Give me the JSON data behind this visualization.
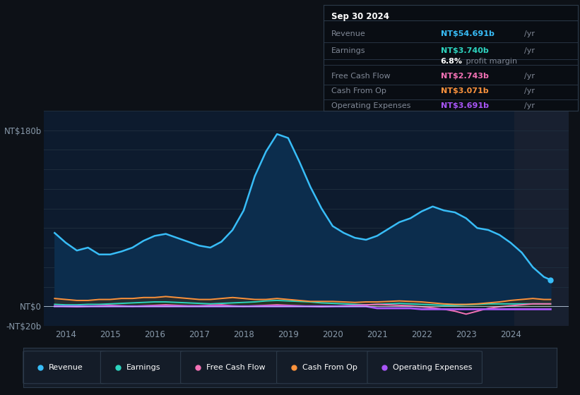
{
  "bg_color": "#0d1117",
  "plot_bg_color": "#0d1b2e",
  "grid_color": "#1e2d3d",
  "ylim": [
    -20,
    200
  ],
  "xlim_start": 2013.5,
  "xlim_end": 2025.3,
  "xticks": [
    2014,
    2015,
    2016,
    2017,
    2018,
    2019,
    2020,
    2021,
    2022,
    2023,
    2024
  ],
  "info_box": {
    "date": "Sep 30 2024",
    "rows": [
      {
        "label": "Revenue",
        "value": "NT$54.691b",
        "unit": "/yr",
        "color": "#38bdf8"
      },
      {
        "label": "Earnings",
        "value": "NT$3.740b",
        "unit": "/yr",
        "color": "#2dd4bf"
      },
      {
        "label": "",
        "value": "6.8%",
        "unit": " profit margin",
        "color": "#ffffff"
      },
      {
        "label": "Free Cash Flow",
        "value": "NT$2.743b",
        "unit": "/yr",
        "color": "#f472b6"
      },
      {
        "label": "Cash From Op",
        "value": "NT$3.071b",
        "unit": "/yr",
        "color": "#fb923c"
      },
      {
        "label": "Operating Expenses",
        "value": "NT$3.691b",
        "unit": "/yr",
        "color": "#a855f7"
      }
    ]
  },
  "revenue_x": [
    2013.75,
    2014.0,
    2014.25,
    2014.5,
    2014.75,
    2015.0,
    2015.25,
    2015.5,
    2015.75,
    2016.0,
    2016.25,
    2016.5,
    2016.75,
    2017.0,
    2017.25,
    2017.5,
    2017.75,
    2018.0,
    2018.25,
    2018.5,
    2018.75,
    2019.0,
    2019.25,
    2019.5,
    2019.75,
    2020.0,
    2020.25,
    2020.5,
    2020.75,
    2021.0,
    2021.25,
    2021.5,
    2021.75,
    2022.0,
    2022.25,
    2022.5,
    2022.75,
    2023.0,
    2023.25,
    2023.5,
    2023.75,
    2024.0,
    2024.25,
    2024.5,
    2024.75,
    2024.9
  ],
  "revenue_y": [
    75,
    65,
    57,
    60,
    53,
    53,
    56,
    60,
    67,
    72,
    74,
    70,
    66,
    62,
    60,
    66,
    78,
    98,
    133,
    158,
    176,
    172,
    148,
    122,
    100,
    82,
    75,
    70,
    68,
    72,
    79,
    86,
    90,
    97,
    102,
    98,
    96,
    90,
    80,
    78,
    73,
    65,
    55,
    40,
    30,
    27
  ],
  "earnings_x": [
    2013.75,
    2014.0,
    2014.25,
    2014.5,
    2014.75,
    2015.0,
    2015.25,
    2015.5,
    2015.75,
    2016.0,
    2016.25,
    2016.5,
    2016.75,
    2017.0,
    2017.25,
    2017.5,
    2017.75,
    2018.0,
    2018.25,
    2018.5,
    2018.75,
    2019.0,
    2019.25,
    2019.5,
    2019.75,
    2020.0,
    2020.25,
    2020.5,
    2020.75,
    2021.0,
    2021.25,
    2021.5,
    2021.75,
    2022.0,
    2022.25,
    2022.5,
    2022.75,
    2023.0,
    2023.25,
    2023.5,
    2023.75,
    2024.0,
    2024.25,
    2024.5,
    2024.75,
    2024.9
  ],
  "earnings_y": [
    2,
    1.5,
    1.5,
    2,
    2,
    2.5,
    3,
    3.5,
    4,
    4.5,
    4.5,
    4,
    3.5,
    3,
    2.5,
    3,
    3.5,
    4,
    4.5,
    5.5,
    6,
    5.5,
    5,
    4.5,
    3.5,
    3,
    2.5,
    2,
    1.5,
    2,
    2.5,
    3,
    2.5,
    2,
    1.5,
    1,
    1,
    1.5,
    2,
    2.5,
    2.5,
    2.5,
    2.5,
    2.5,
    2.5,
    2.5
  ],
  "fcf_x": [
    2013.75,
    2014.0,
    2014.25,
    2014.5,
    2014.75,
    2015.0,
    2015.25,
    2015.5,
    2015.75,
    2016.0,
    2016.25,
    2016.5,
    2016.75,
    2017.0,
    2017.25,
    2017.5,
    2017.75,
    2018.0,
    2018.25,
    2018.5,
    2018.75,
    2019.0,
    2019.25,
    2019.5,
    2019.75,
    2020.0,
    2020.25,
    2020.5,
    2020.75,
    2021.0,
    2021.25,
    2021.5,
    2021.75,
    2022.0,
    2022.25,
    2022.5,
    2022.75,
    2023.0,
    2023.25,
    2023.5,
    2023.75,
    2024.0,
    2024.25,
    2024.5,
    2024.75,
    2024.9
  ],
  "fcf_y": [
    0.5,
    0,
    -0.5,
    0,
    0.5,
    1,
    0.5,
    0,
    0.5,
    1,
    1.5,
    1,
    0.5,
    0.5,
    1,
    1.5,
    0.5,
    0,
    0.5,
    1,
    1.5,
    1,
    0.5,
    0,
    -0.5,
    0,
    0.5,
    1,
    1.5,
    2,
    1.5,
    1,
    0.5,
    -0.5,
    -1.5,
    -3,
    -5,
    -8,
    -5,
    -2,
    -0.5,
    0.5,
    1.5,
    2.5,
    2.5,
    2.5
  ],
  "cfo_x": [
    2013.75,
    2014.0,
    2014.25,
    2014.5,
    2014.75,
    2015.0,
    2015.25,
    2015.5,
    2015.75,
    2016.0,
    2016.25,
    2016.5,
    2016.75,
    2017.0,
    2017.25,
    2017.5,
    2017.75,
    2018.0,
    2018.25,
    2018.5,
    2018.75,
    2019.0,
    2019.25,
    2019.5,
    2019.75,
    2020.0,
    2020.25,
    2020.5,
    2020.75,
    2021.0,
    2021.25,
    2021.5,
    2021.75,
    2022.0,
    2022.25,
    2022.5,
    2022.75,
    2023.0,
    2023.25,
    2023.5,
    2023.75,
    2024.0,
    2024.25,
    2024.5,
    2024.75,
    2024.9
  ],
  "cfo_y": [
    8,
    7,
    6,
    6,
    7,
    7,
    8,
    8,
    9,
    9,
    10,
    9,
    8,
    7,
    7,
    8,
    9,
    8,
    7,
    7,
    8,
    7,
    6,
    5,
    5,
    5,
    4.5,
    4,
    4.5,
    4.5,
    5,
    5.5,
    5,
    4.5,
    3.5,
    2.5,
    2,
    2,
    2.5,
    3.5,
    4.5,
    6,
    7,
    8,
    7,
    7
  ],
  "opex_x": [
    2013.75,
    2014.0,
    2014.25,
    2014.5,
    2014.75,
    2015.0,
    2015.25,
    2015.5,
    2015.75,
    2016.0,
    2016.25,
    2016.5,
    2016.75,
    2017.0,
    2017.25,
    2017.5,
    2017.75,
    2018.0,
    2018.25,
    2018.5,
    2018.75,
    2019.0,
    2019.25,
    2019.5,
    2019.75,
    2020.0,
    2020.25,
    2020.5,
    2020.75,
    2021.0,
    2021.25,
    2021.5,
    2021.75,
    2022.0,
    2022.25,
    2022.5,
    2022.75,
    2023.0,
    2023.25,
    2023.5,
    2023.75,
    2024.0,
    2024.25,
    2024.5,
    2024.75,
    2024.9
  ],
  "opex_y": [
    0,
    0,
    0,
    0,
    0,
    0,
    0,
    0,
    0,
    0,
    0,
    0,
    0,
    0,
    0,
    0,
    0,
    0,
    0,
    0,
    0,
    0,
    0,
    0,
    0,
    0,
    0,
    0,
    0,
    -2,
    -2,
    -2,
    -2,
    -3,
    -3,
    -3,
    -3,
    -3,
    -3,
    -3,
    -3,
    -3,
    -3,
    -3,
    -3,
    -3
  ],
  "legend": [
    {
      "label": "Revenue",
      "color": "#38bdf8"
    },
    {
      "label": "Earnings",
      "color": "#2dd4bf"
    },
    {
      "label": "Free Cash Flow",
      "color": "#f472b6"
    },
    {
      "label": "Cash From Op",
      "color": "#fb923c"
    },
    {
      "label": "Operating Expenses",
      "color": "#a855f7"
    }
  ]
}
